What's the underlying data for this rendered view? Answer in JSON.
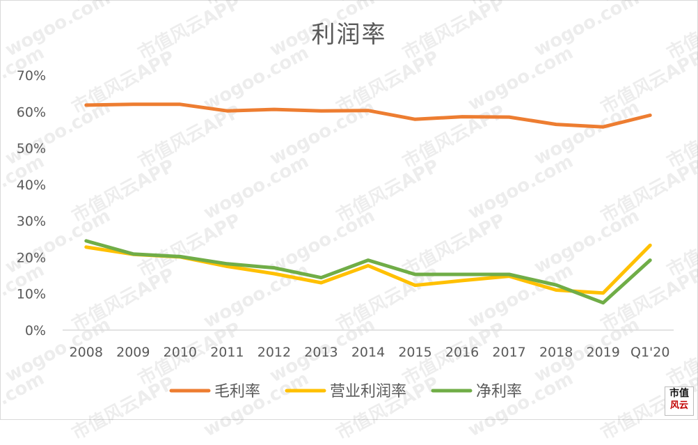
{
  "chart_data": {
    "type": "line",
    "title": "利润率",
    "categories": [
      "2008",
      "2009",
      "2010",
      "2011",
      "2012",
      "2013",
      "2014",
      "2015",
      "2016",
      "2017",
      "2018",
      "2019",
      "Q1'20"
    ],
    "y_ticks": [
      "0%",
      "10%",
      "20%",
      "30%",
      "40%",
      "50%",
      "60%",
      "70%"
    ],
    "ylim": [
      0,
      70
    ],
    "series": [
      {
        "name": "毛利率",
        "color": "#ed7d31",
        "values": [
          61.8,
          62.0,
          62.0,
          60.2,
          60.6,
          60.2,
          60.3,
          57.9,
          58.6,
          58.5,
          56.5,
          55.8,
          59.0
        ]
      },
      {
        "name": "营业利润率",
        "color": "#ffc000",
        "values": [
          22.8,
          20.8,
          20.1,
          17.5,
          15.5,
          13.0,
          17.7,
          12.3,
          13.6,
          14.8,
          11.0,
          10.2,
          23.3
        ]
      },
      {
        "name": "净利率",
        "color": "#70ad47",
        "values": [
          24.5,
          20.9,
          20.2,
          18.2,
          17.1,
          14.4,
          19.2,
          15.3,
          15.3,
          15.3,
          12.4,
          7.5,
          19.2
        ]
      }
    ],
    "legend_position": "bottom",
    "grid": false
  },
  "watermark": {
    "text_a": "wogoo.com",
    "text_b": "市值风云APP"
  },
  "logo": {
    "line1": "市值",
    "line2": "风云"
  }
}
